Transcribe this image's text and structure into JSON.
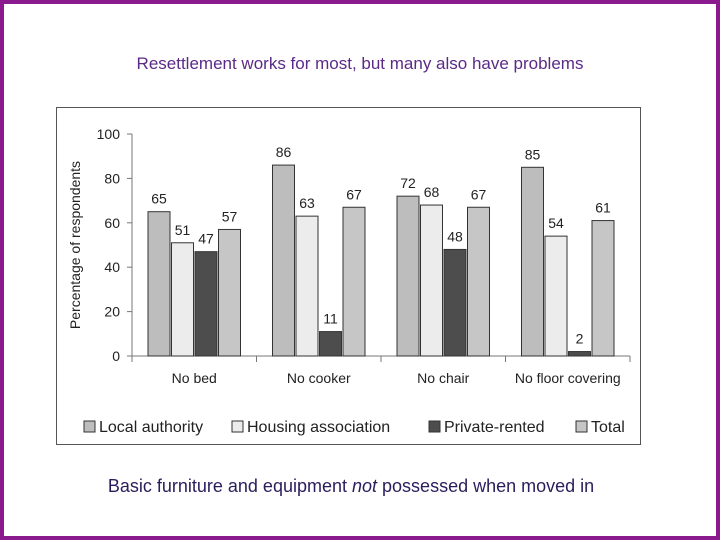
{
  "title": "Resettlement works for most, but many also have problems",
  "caption": {
    "before": "Basic furniture and equipment ",
    "emphasis": "not",
    "after": " possessed when moved in"
  },
  "chart_data": {
    "type": "bar",
    "ylabel": "Percentage of respondents",
    "xlabel": "",
    "ylim": [
      0,
      100
    ],
    "yticks": [
      0,
      20,
      40,
      60,
      80,
      100
    ],
    "legend_position": "bottom",
    "categories": [
      "No bed",
      "No cooker",
      "No chair",
      "No floor covering"
    ],
    "series": [
      {
        "name": "Local authority",
        "color": "#bdbdbd",
        "values": [
          65,
          86,
          72,
          85
        ]
      },
      {
        "name": "Housing association",
        "color": "#ececec",
        "values": [
          51,
          63,
          68,
          54
        ]
      },
      {
        "name": "Private-rented",
        "color": "#4d4d4d",
        "values": [
          47,
          11,
          48,
          2
        ]
      },
      {
        "name": "Total",
        "color": "#c6c6c6",
        "values": [
          57,
          67,
          67,
          61
        ]
      }
    ]
  }
}
